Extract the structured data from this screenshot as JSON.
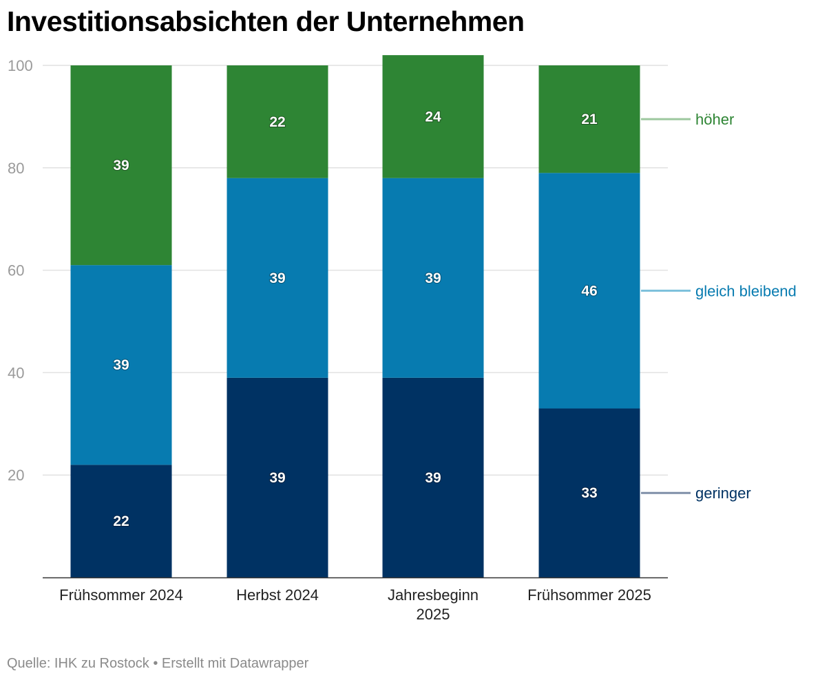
{
  "title": "Investitionsabsichten der Unternehmen",
  "footer": {
    "source": "Quelle: IHK zu Rostock",
    "separator": "•",
    "credit": "Erstellt mit Datawrapper"
  },
  "colors": {
    "geringer": "#003263",
    "gleich_bleibend": "#077bb0",
    "hoeher": "#2e8534",
    "geringer_line": "#7f8fa8",
    "gleich_bleibend_line": "#7cc0db",
    "hoeher_line": "#9cc79e",
    "grid": "#e1e1e1",
    "axis": "#333333"
  },
  "chart_data": {
    "type": "bar",
    "stacked": true,
    "title": "Investitionsabsichten der Unternehmen",
    "categories": [
      [
        "Frühsommer 2024"
      ],
      [
        "Herbst 2024"
      ],
      [
        "Jahresbeginn",
        "2025"
      ],
      [
        "Frühsommer 2025"
      ]
    ],
    "series": [
      {
        "name": "geringer",
        "color_key": "geringer",
        "values": [
          22,
          39,
          39,
          33
        ]
      },
      {
        "name": "gleich bleibend",
        "color_key": "gleich_bleibend",
        "values": [
          39,
          39,
          39,
          46
        ]
      },
      {
        "name": "höher",
        "color_key": "hoeher",
        "values": [
          39,
          22,
          24,
          21
        ]
      }
    ],
    "ylim": [
      0,
      100
    ],
    "yticks": [
      20,
      40,
      60,
      80,
      100
    ],
    "xlabel": "",
    "ylabel": "",
    "grid": true,
    "legend_placement": "right, direct labels"
  }
}
